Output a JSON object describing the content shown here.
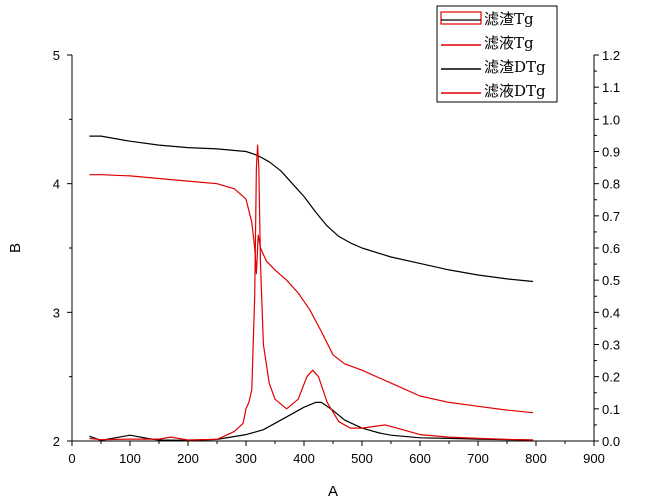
{
  "chart_data": {
    "type": "line",
    "xlabel": "A",
    "ylabel": "B",
    "xlim": [
      0,
      900
    ],
    "ylim": [
      2,
      5
    ],
    "y2lim": [
      0,
      1.2
    ],
    "x_ticks": [
      0,
      100,
      200,
      300,
      400,
      500,
      600,
      700,
      800,
      900
    ],
    "y_ticks": [
      2,
      3,
      4,
      5
    ],
    "y2_ticks": [
      "0.0",
      "0.1",
      "0.2",
      "0.3",
      "0.4",
      "0.5",
      "0.6",
      "0.7",
      "0.8",
      "0.9",
      "1.0",
      "1.1",
      "1.2"
    ],
    "legend": "top-right",
    "grid": false,
    "series": [
      {
        "name": "滤渣Tg",
        "axis": "left",
        "color": "#000000",
        "x": [
          30,
          50,
          100,
          150,
          200,
          250,
          300,
          320,
          340,
          360,
          380,
          400,
          420,
          440,
          460,
          480,
          500,
          550,
          600,
          650,
          700,
          750,
          795
        ],
        "y": [
          4.37,
          4.37,
          4.33,
          4.3,
          4.28,
          4.27,
          4.25,
          4.22,
          4.17,
          4.1,
          4.0,
          3.9,
          3.78,
          3.67,
          3.59,
          3.54,
          3.5,
          3.43,
          3.38,
          3.33,
          3.29,
          3.26,
          3.24
        ]
      },
      {
        "name": "滤液Tg",
        "axis": "left",
        "color": "#e00000",
        "x": [
          30,
          50,
          100,
          150,
          200,
          250,
          280,
          300,
          310,
          315,
          318,
          321,
          325,
          335,
          350,
          370,
          390,
          410,
          430,
          450,
          470,
          500,
          550,
          600,
          650,
          700,
          750,
          795
        ],
        "y": [
          4.07,
          4.07,
          4.06,
          4.04,
          4.02,
          4.0,
          3.96,
          3.88,
          3.7,
          3.5,
          3.3,
          3.6,
          3.5,
          3.4,
          3.33,
          3.25,
          3.15,
          3.02,
          2.85,
          2.67,
          2.6,
          2.55,
          2.45,
          2.35,
          2.3,
          2.27,
          2.24,
          2.22
        ]
      },
      {
        "name": "滤渣DTg",
        "axis": "right",
        "color": "#000000",
        "x": [
          30,
          50,
          100,
          130,
          150,
          200,
          250,
          300,
          330,
          350,
          380,
          400,
          420,
          430,
          450,
          470,
          500,
          530,
          550,
          600,
          650,
          700,
          750,
          795
        ],
        "y": [
          0.015,
          0.002,
          0.018,
          0.008,
          0.003,
          0.002,
          0.005,
          0.02,
          0.035,
          0.055,
          0.085,
          0.105,
          0.12,
          0.12,
          0.095,
          0.065,
          0.04,
          0.025,
          0.018,
          0.01,
          0.008,
          0.006,
          0.004,
          0.003
        ]
      },
      {
        "name": "滤液DTg",
        "axis": "right",
        "color": "#e00000",
        "x": [
          30,
          50,
          100,
          150,
          170,
          200,
          250,
          280,
          295,
          300,
          305,
          310,
          315,
          318,
          320,
          322,
          325,
          330,
          340,
          350,
          370,
          390,
          405,
          415,
          425,
          440,
          460,
          480,
          500,
          520,
          540,
          560,
          600,
          650,
          700,
          750,
          795
        ],
        "y": [
          0.008,
          0.004,
          0.006,
          0.006,
          0.012,
          0.003,
          0.005,
          0.03,
          0.055,
          0.1,
          0.12,
          0.16,
          0.45,
          0.85,
          0.92,
          0.85,
          0.55,
          0.3,
          0.18,
          0.13,
          0.1,
          0.13,
          0.2,
          0.22,
          0.2,
          0.12,
          0.06,
          0.04,
          0.04,
          0.045,
          0.05,
          0.04,
          0.02,
          0.012,
          0.008,
          0.005,
          0.003
        ]
      }
    ]
  }
}
